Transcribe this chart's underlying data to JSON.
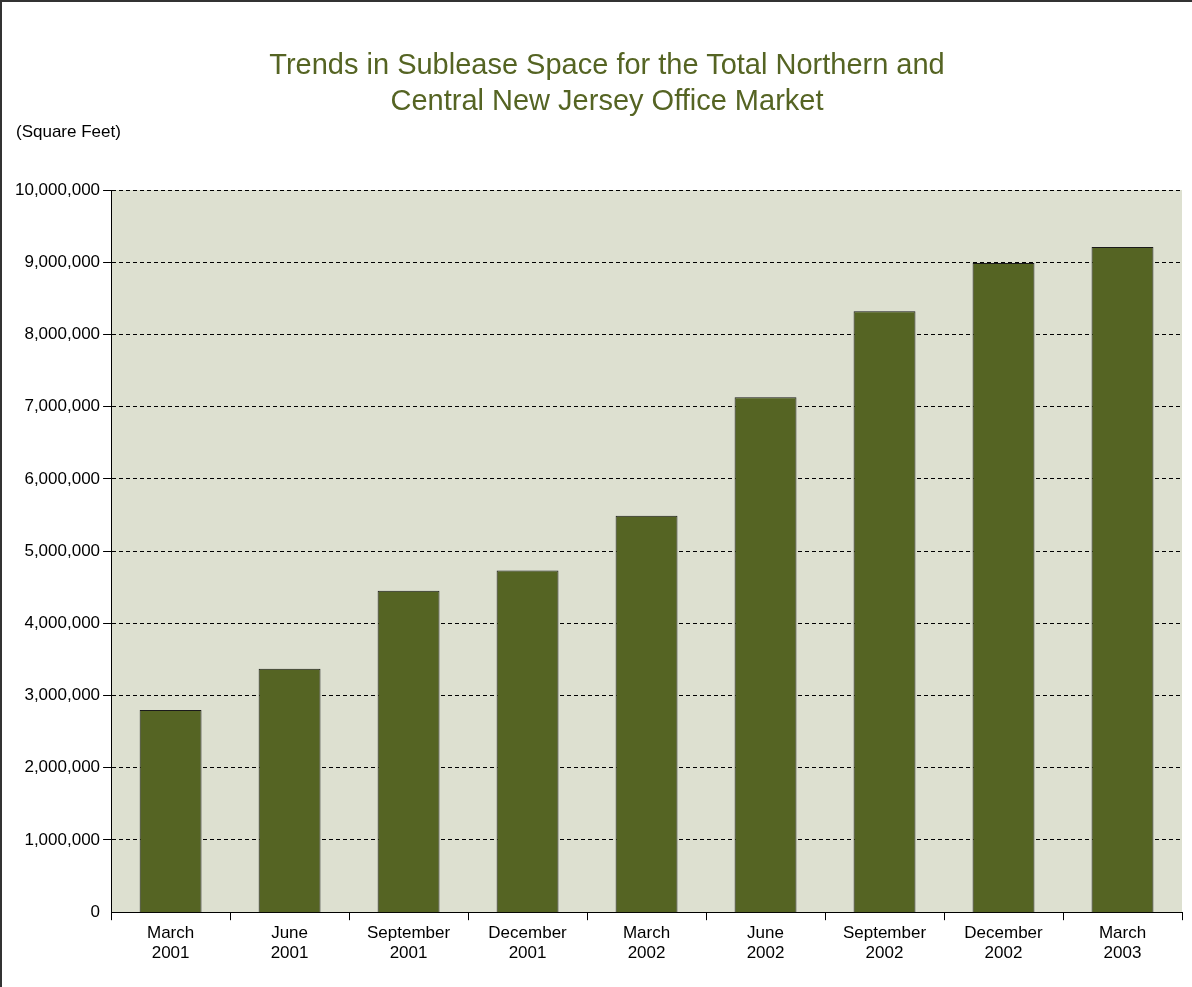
{
  "chart_data": {
    "type": "bar",
    "title": "Trends in Sublease Space for the Total Northern and Central New Jersey Office Market",
    "ylabel": "(Square Feet)",
    "categories": [
      "March 2001",
      "June 2001",
      "September 2001",
      "December 2001",
      "March 2002",
      "June 2002",
      "September 2002",
      "December 2002",
      "March 2003"
    ],
    "values": [
      2800000,
      3370000,
      4450000,
      4730000,
      5490000,
      7130000,
      8320000,
      8990000,
      9210000
    ],
    "color": "#556423",
    "ylim": [
      0,
      10000000
    ],
    "yticks": [
      0,
      {
        "value": 1000000,
        "label": "1,000,000"
      },
      {
        "value": 2000000,
        "label": "2,000,000"
      },
      {
        "value": 3000000,
        "label": "3,000,000"
      },
      {
        "value": 4000000,
        "label": "4,000,000"
      },
      {
        "value": 5000000,
        "label": "5,000,000"
      },
      {
        "value": 6000000,
        "label": "6,000,000"
      },
      {
        "value": 7000000,
        "label": "7,000,000"
      },
      {
        "value": 8000000,
        "label": "8,000,000"
      },
      {
        "value": 9000000,
        "label": "9,000,000"
      },
      {
        "value": 10000000,
        "label": "10,000,000"
      }
    ],
    "grid": "y",
    "legend": false
  }
}
